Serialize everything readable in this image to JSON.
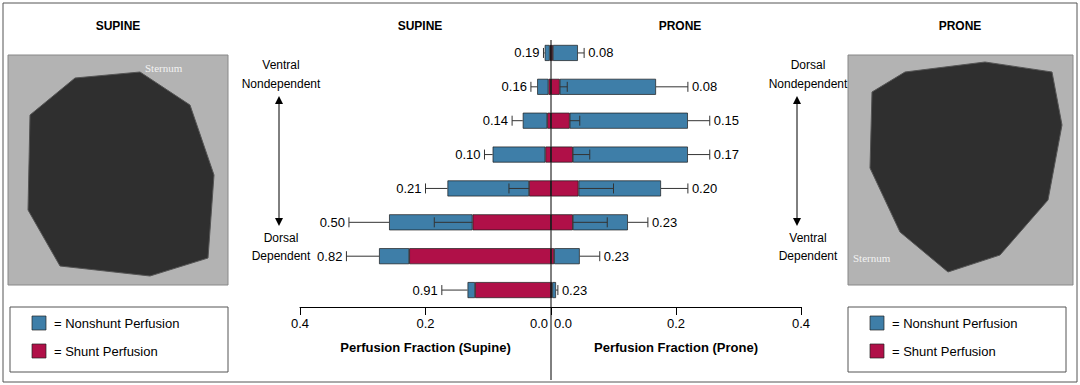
{
  "chart_data": {
    "type": "bar",
    "orientation": "horizontal",
    "stacked": true,
    "grid": false,
    "legend": "bottom",
    "categories": [
      null,
      null,
      null,
      null,
      null,
      null,
      null,
      null
    ],
    "panels": [
      {
        "title": "SUPINE",
        "xlabel": "Perfusion Fraction (Supine)",
        "xlim": [
          0,
          0.4
        ],
        "xticks": [
          {
            "value": 0,
            "label": "0.0"
          },
          0.2,
          0.4
        ],
        "image": {
          "title": "SUPINE",
          "label": "Sternum"
        },
        "end_labels": {
          "top": "Ventral\nNondependent",
          "bottom": "Dorsal\nDependent"
        },
        "series": [
          {
            "name": "= Nonshunt Perfusion",
            "color": "#3e7ea8",
            "values": [
              0.008,
              0.018,
              0.039,
              0.084,
              0.13,
              0.133,
              0.048,
              0.012
            ],
            "errors": [
              0.002,
              0.01,
              0.017,
              0.013,
              0.035,
              0.064,
              0.052,
              0.041
            ]
          },
          {
            "name": "= Shunt Perfusion",
            "color": "#b01048",
            "values": [
              0.002,
              0.004,
              0.006,
              0.009,
              0.035,
              0.125,
              0.226,
              0.121
            ],
            "errors": [
              null,
              null,
              null,
              null,
              0.032,
              0.061,
              null,
              null
            ]
          }
        ],
        "shunt_fraction": [
          0.19,
          0.16,
          0.14,
          {
            "value": 0.1,
            "label": "0.10"
          },
          0.21,
          {
            "value": 0.5,
            "label": "0.50"
          },
          0.82,
          0.91
        ]
      },
      {
        "title": "PRONE",
        "xlabel": "Perfusion Fraction (Prone)",
        "xlim": [
          0,
          0.4
        ],
        "xticks": [
          {
            "value": 0,
            "label": "0.0"
          },
          0.2,
          0.4
        ],
        "image": {
          "title": "PRONE",
          "label": "Sternum"
        },
        "end_labels": {
          "top": "Dorsal\nNondependent",
          "bottom": "Ventral\nDependent"
        },
        "series": [
          {
            "name": "= Nonshunt Perfusion",
            "color": "#3e7ea8",
            "values": [
              0.04,
              0.154,
              0.189,
              0.184,
              0.132,
              0.088,
              0.041,
              0.006
            ],
            "errors": [
              0.01,
              0.051,
              0.035,
              0.035,
              0.043,
              0.032,
              0.032,
              0.003
            ]
          },
          {
            "name": "= Shunt Perfusion",
            "color": "#b01048",
            "values": [
              0.003,
              0.014,
              0.03,
              0.035,
              0.044,
              0.035,
              0.005,
              0.002
            ],
            "errors": [
              null,
              0.012,
              0.016,
              0.027,
              0.056,
              0.055,
              null,
              null
            ]
          }
        ],
        "shunt_fraction": [
          0.08,
          0.08,
          0.15,
          0.17,
          {
            "value": 0.2,
            "label": "0.20"
          },
          0.23,
          0.23,
          0.23
        ]
      }
    ]
  }
}
